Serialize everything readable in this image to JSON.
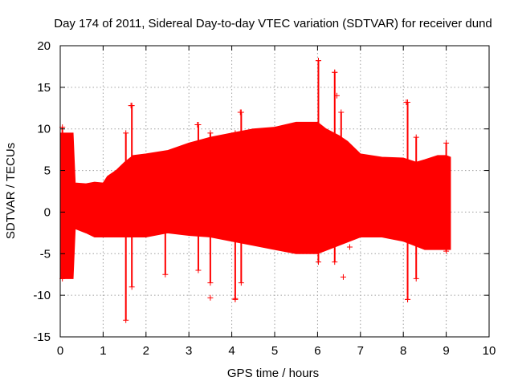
{
  "chart_data": {
    "type": "line",
    "title": "Day 174 of 2011, Sidereal Day-to-day VTEC variation (SDTVAR) for receiver dund",
    "xlabel": "GPS time / hours",
    "ylabel": "SDTVAR / TECUs",
    "xlim": [
      0,
      10
    ],
    "ylim": [
      -15,
      20
    ],
    "x_ticks": [
      0,
      1,
      2,
      3,
      4,
      5,
      6,
      7,
      8,
      9,
      10
    ],
    "y_ticks": [
      -15,
      -10,
      -5,
      0,
      5,
      10,
      15,
      20
    ],
    "grid": true,
    "series": [
      {
        "name": "SDTVAR",
        "color": "#ff0000",
        "marker": "+",
        "upper_envelope": {
          "x": [
            0.0,
            0.3,
            0.35,
            0.6,
            0.8,
            1.0,
            1.1,
            1.3,
            1.5,
            1.7,
            2.0,
            2.5,
            3.0,
            3.5,
            4.0,
            4.5,
            5.0,
            5.5,
            6.0,
            6.2,
            6.5,
            6.7,
            7.0,
            7.5,
            8.0,
            8.3,
            8.5,
            8.8,
            9.0,
            9.1
          ],
          "y": [
            9.5,
            9.5,
            3.5,
            3.4,
            3.6,
            3.5,
            4.3,
            5.0,
            6.0,
            6.8,
            7.0,
            7.4,
            8.3,
            9.0,
            9.5,
            10.0,
            10.2,
            10.8,
            10.8,
            10.0,
            9.2,
            8.5,
            7.0,
            6.6,
            6.5,
            6.0,
            6.3,
            6.8,
            6.8,
            6.6
          ],
          "description": "upper envelope of the data band"
        },
        "lower_envelope": {
          "x": [
            0.0,
            0.3,
            0.35,
            0.6,
            0.8,
            1.0,
            1.5,
            2.0,
            2.5,
            3.0,
            3.5,
            4.0,
            4.5,
            5.0,
            5.5,
            6.0,
            6.5,
            7.0,
            7.5,
            8.0,
            8.5,
            9.0,
            9.1
          ],
          "y": [
            -8.0,
            -8.0,
            -2.0,
            -2.5,
            -3.0,
            -3.0,
            -3.0,
            -3.0,
            -2.5,
            -2.8,
            -3.0,
            -3.5,
            -4.0,
            -4.5,
            -5.0,
            -5.0,
            -4.0,
            -3.0,
            -3.0,
            -3.5,
            -4.5,
            -4.5,
            -4.5
          ]
        },
        "spikes": [
          {
            "x": 0.05,
            "low": -8.0,
            "high": 10.2
          },
          {
            "x": 1.53,
            "low": -13.0,
            "high": 9.5
          },
          {
            "x": 1.67,
            "low": -9.0,
            "high": 12.8
          },
          {
            "x": 2.45,
            "low": -7.5,
            "high": 7.0
          },
          {
            "x": 3.22,
            "low": -7.0,
            "high": 10.5
          },
          {
            "x": 3.5,
            "low": -8.5,
            "high": 9.5
          },
          {
            "x": 4.08,
            "low": -10.5,
            "high": 9.5
          },
          {
            "x": 4.22,
            "low": -8.5,
            "high": 12.0
          },
          {
            "x": 6.02,
            "low": -6.0,
            "high": 18.2
          },
          {
            "x": 6.4,
            "low": -6.0,
            "high": 16.8
          },
          {
            "x": 6.55,
            "low": -3.5,
            "high": 12.0
          },
          {
            "x": 8.1,
            "low": -10.5,
            "high": 13.2
          },
          {
            "x": 8.3,
            "low": -8.0,
            "high": 9.0
          },
          {
            "x": 9.0,
            "low": -4.7,
            "high": 8.3
          }
        ],
        "outliers": [
          {
            "x": 3.5,
            "y": -10.3
          },
          {
            "x": 4.08,
            "y": -10.4
          },
          {
            "x": 6.6,
            "y": -7.8
          },
          {
            "x": 6.75,
            "y": -4.2
          },
          {
            "x": 6.45,
            "y": 14.0
          },
          {
            "x": 6.4,
            "y": 16.8
          },
          {
            "x": 8.07,
            "y": 13.2
          },
          {
            "x": 8.1,
            "y": -10.5
          },
          {
            "x": 4.2,
            "y": 12.0
          },
          {
            "x": 1.65,
            "y": 12.8
          },
          {
            "x": 3.2,
            "y": 10.5
          },
          {
            "x": 6.02,
            "y": 18.2
          }
        ]
      }
    ]
  }
}
